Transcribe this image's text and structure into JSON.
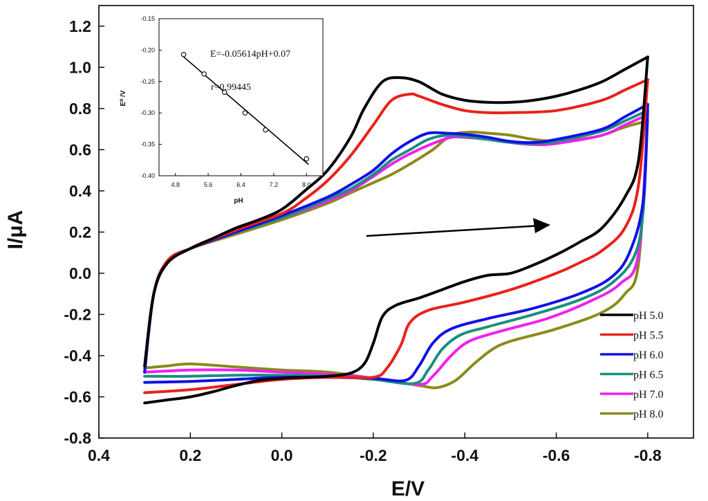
{
  "chart_data": [
    {
      "type": "line",
      "title": "",
      "xlabel": "E/V",
      "ylabel": "I/μA",
      "xlim": [
        0.4,
        -0.9
      ],
      "ylim": [
        -0.8,
        1.3
      ],
      "x_ticks": [
        "0.4",
        "0.2",
        "0.0",
        "-0.2",
        "-0.4",
        "-0.6",
        "-0.8"
      ],
      "y_ticks": [
        "-0.8",
        "-0.6",
        "-0.4",
        "-0.2",
        "0.0",
        "0.2",
        "0.4",
        "0.6",
        "0.8",
        "1.0",
        "1.2"
      ],
      "legend_position": "bottom-right",
      "grid": false,
      "annotation": "arrow pointing in positive potential-scan direction",
      "series": [
        {
          "name": "pH 5.0",
          "color": "#000000",
          "anodic": [
            [
              0.3,
              -0.63
            ],
            [
              0.25,
              -0.615
            ],
            [
              0.2,
              -0.6
            ],
            [
              0.15,
              -0.575
            ],
            [
              0.1,
              -0.545
            ],
            [
              0.05,
              -0.52
            ],
            [
              0.0,
              -0.51
            ],
            [
              -0.05,
              -0.505
            ],
            [
              -0.1,
              -0.5
            ],
            [
              -0.15,
              -0.485
            ],
            [
              -0.18,
              -0.44
            ],
            [
              -0.2,
              -0.34
            ],
            [
              -0.22,
              -0.21
            ],
            [
              -0.25,
              -0.155
            ],
            [
              -0.3,
              -0.12
            ],
            [
              -0.35,
              -0.08
            ],
            [
              -0.4,
              -0.04
            ],
            [
              -0.45,
              -0.01
            ],
            [
              -0.5,
              0.0
            ],
            [
              -0.55,
              0.04
            ],
            [
              -0.6,
              0.09
            ],
            [
              -0.65,
              0.15
            ],
            [
              -0.7,
              0.22
            ],
            [
              -0.75,
              0.37
            ],
            [
              -0.78,
              0.55
            ],
            [
              -0.8,
              1.05
            ]
          ],
          "cathodic": [
            [
              -0.8,
              1.05
            ],
            [
              -0.75,
              0.99
            ],
            [
              -0.7,
              0.93
            ],
            [
              -0.65,
              0.89
            ],
            [
              -0.6,
              0.86
            ],
            [
              -0.55,
              0.84
            ],
            [
              -0.5,
              0.83
            ],
            [
              -0.45,
              0.83
            ],
            [
              -0.4,
              0.84
            ],
            [
              -0.35,
              0.87
            ],
            [
              -0.3,
              0.93
            ],
            [
              -0.26,
              0.95
            ],
            [
              -0.22,
              0.93
            ],
            [
              -0.18,
              0.8
            ],
            [
              -0.15,
              0.66
            ],
            [
              -0.1,
              0.5
            ],
            [
              -0.05,
              0.4
            ],
            [
              0.0,
              0.31
            ],
            [
              0.05,
              0.26
            ],
            [
              0.1,
              0.22
            ],
            [
              0.15,
              0.17
            ],
            [
              0.2,
              0.12
            ],
            [
              0.25,
              0.05
            ],
            [
              0.28,
              -0.1
            ],
            [
              0.3,
              -0.45
            ]
          ]
        },
        {
          "name": "pH 5.5",
          "color": "#e8221a",
          "anodic": [
            [
              0.3,
              -0.58
            ],
            [
              0.2,
              -0.565
            ],
            [
              0.1,
              -0.54
            ],
            [
              0.0,
              -0.515
            ],
            [
              -0.1,
              -0.505
            ],
            [
              -0.2,
              -0.505
            ],
            [
              -0.23,
              -0.46
            ],
            [
              -0.26,
              -0.35
            ],
            [
              -0.28,
              -0.24
            ],
            [
              -0.32,
              -0.18
            ],
            [
              -0.4,
              -0.14
            ],
            [
              -0.5,
              -0.08
            ],
            [
              -0.6,
              0.0
            ],
            [
              -0.65,
              0.05
            ],
            [
              -0.7,
              0.11
            ],
            [
              -0.75,
              0.22
            ],
            [
              -0.78,
              0.43
            ],
            [
              -0.8,
              0.94
            ]
          ],
          "cathodic": [
            [
              -0.8,
              0.94
            ],
            [
              -0.75,
              0.89
            ],
            [
              -0.7,
              0.84
            ],
            [
              -0.6,
              0.79
            ],
            [
              -0.5,
              0.78
            ],
            [
              -0.45,
              0.78
            ],
            [
              -0.4,
              0.79
            ],
            [
              -0.35,
              0.82
            ],
            [
              -0.3,
              0.86
            ],
            [
              -0.28,
              0.87
            ],
            [
              -0.24,
              0.84
            ],
            [
              -0.2,
              0.72
            ],
            [
              -0.15,
              0.57
            ],
            [
              -0.1,
              0.45
            ],
            [
              -0.05,
              0.36
            ],
            [
              0.0,
              0.29
            ],
            [
              0.1,
              0.21
            ],
            [
              0.2,
              0.12
            ],
            [
              0.25,
              0.06
            ],
            [
              0.28,
              -0.1
            ],
            [
              0.3,
              -0.45
            ]
          ]
        },
        {
          "name": "pH 6.0",
          "color": "#1010e8",
          "anodic": [
            [
              0.3,
              -0.53
            ],
            [
              0.2,
              -0.525
            ],
            [
              0.1,
              -0.515
            ],
            [
              0.0,
              -0.505
            ],
            [
              -0.1,
              -0.505
            ],
            [
              -0.2,
              -0.51
            ],
            [
              -0.27,
              -0.52
            ],
            [
              -0.3,
              -0.45
            ],
            [
              -0.33,
              -0.34
            ],
            [
              -0.37,
              -0.27
            ],
            [
              -0.45,
              -0.22
            ],
            [
              -0.55,
              -0.17
            ],
            [
              -0.65,
              -0.1
            ],
            [
              -0.72,
              -0.02
            ],
            [
              -0.76,
              0.1
            ],
            [
              -0.79,
              0.35
            ],
            [
              -0.8,
              0.82
            ]
          ],
          "cathodic": [
            [
              -0.8,
              0.82
            ],
            [
              -0.75,
              0.76
            ],
            [
              -0.7,
              0.7
            ],
            [
              -0.6,
              0.65
            ],
            [
              -0.55,
              0.635
            ],
            [
              -0.5,
              0.64
            ],
            [
              -0.45,
              0.66
            ],
            [
              -0.4,
              0.675
            ],
            [
              -0.36,
              0.68
            ],
            [
              -0.32,
              0.68
            ],
            [
              -0.28,
              0.64
            ],
            [
              -0.24,
              0.58
            ],
            [
              -0.2,
              0.5
            ],
            [
              -0.15,
              0.43
            ],
            [
              -0.1,
              0.37
            ],
            [
              0.0,
              0.28
            ],
            [
              0.1,
              0.2
            ],
            [
              0.2,
              0.12
            ],
            [
              0.25,
              0.06
            ],
            [
              0.28,
              -0.1
            ],
            [
              0.3,
              -0.48
            ]
          ]
        },
        {
          "name": "pH 6.5",
          "color": "#1a8f7f",
          "anodic": [
            [
              0.3,
              -0.5
            ],
            [
              0.2,
              -0.5
            ],
            [
              0.1,
              -0.495
            ],
            [
              0.0,
              -0.495
            ],
            [
              -0.1,
              -0.5
            ],
            [
              -0.2,
              -0.515
            ],
            [
              -0.29,
              -0.535
            ],
            [
              -0.32,
              -0.47
            ],
            [
              -0.35,
              -0.37
            ],
            [
              -0.39,
              -0.3
            ],
            [
              -0.45,
              -0.26
            ],
            [
              -0.55,
              -0.2
            ],
            [
              -0.65,
              -0.13
            ],
            [
              -0.72,
              -0.05
            ],
            [
              -0.77,
              0.08
            ],
            [
              -0.79,
              0.3
            ],
            [
              -0.8,
              0.79
            ]
          ],
          "cathodic": [
            [
              -0.8,
              0.79
            ],
            [
              -0.75,
              0.74
            ],
            [
              -0.7,
              0.69
            ],
            [
              -0.6,
              0.64
            ],
            [
              -0.55,
              0.63
            ],
            [
              -0.5,
              0.635
            ],
            [
              -0.45,
              0.65
            ],
            [
              -0.4,
              0.665
            ],
            [
              -0.36,
              0.67
            ],
            [
              -0.32,
              0.65
            ],
            [
              -0.28,
              0.6
            ],
            [
              -0.24,
              0.55
            ],
            [
              -0.2,
              0.48
            ],
            [
              -0.15,
              0.41
            ],
            [
              -0.1,
              0.36
            ],
            [
              0.0,
              0.27
            ],
            [
              0.1,
              0.2
            ],
            [
              0.2,
              0.12
            ],
            [
              0.25,
              0.06
            ],
            [
              0.28,
              -0.1
            ],
            [
              0.3,
              -0.48
            ]
          ]
        },
        {
          "name": "pH 7.0",
          "color": "#f020f0",
          "anodic": [
            [
              0.3,
              -0.48
            ],
            [
              0.2,
              -0.47
            ],
            [
              0.1,
              -0.47
            ],
            [
              0.0,
              -0.48
            ],
            [
              -0.1,
              -0.49
            ],
            [
              -0.2,
              -0.51
            ],
            [
              -0.3,
              -0.54
            ],
            [
              -0.33,
              -0.5
            ],
            [
              -0.37,
              -0.4
            ],
            [
              -0.41,
              -0.33
            ],
            [
              -0.48,
              -0.28
            ],
            [
              -0.58,
              -0.22
            ],
            [
              -0.67,
              -0.14
            ],
            [
              -0.74,
              -0.05
            ],
            [
              -0.78,
              0.1
            ],
            [
              -0.8,
              0.77
            ]
          ],
          "cathodic": [
            [
              -0.8,
              0.77
            ],
            [
              -0.75,
              0.72
            ],
            [
              -0.7,
              0.67
            ],
            [
              -0.6,
              0.63
            ],
            [
              -0.55,
              0.625
            ],
            [
              -0.5,
              0.635
            ],
            [
              -0.45,
              0.65
            ],
            [
              -0.4,
              0.66
            ],
            [
              -0.37,
              0.66
            ],
            [
              -0.33,
              0.63
            ],
            [
              -0.28,
              0.58
            ],
            [
              -0.24,
              0.53
            ],
            [
              -0.2,
              0.47
            ],
            [
              -0.15,
              0.4
            ],
            [
              -0.1,
              0.35
            ],
            [
              0.0,
              0.27
            ],
            [
              0.1,
              0.2
            ],
            [
              0.2,
              0.12
            ],
            [
              0.25,
              0.06
            ],
            [
              0.28,
              -0.1
            ],
            [
              0.3,
              -0.48
            ]
          ]
        },
        {
          "name": "pH 8.0",
          "color": "#8a8a1a",
          "anodic": [
            [
              0.3,
              -0.46
            ],
            [
              0.25,
              -0.45
            ],
            [
              0.2,
              -0.44
            ],
            [
              0.1,
              -0.455
            ],
            [
              0.0,
              -0.47
            ],
            [
              -0.1,
              -0.48
            ],
            [
              -0.2,
              -0.51
            ],
            [
              -0.3,
              -0.545
            ],
            [
              -0.34,
              -0.555
            ],
            [
              -0.38,
              -0.52
            ],
            [
              -0.42,
              -0.44
            ],
            [
              -0.46,
              -0.37
            ],
            [
              -0.5,
              -0.33
            ],
            [
              -0.6,
              -0.27
            ],
            [
              -0.7,
              -0.19
            ],
            [
              -0.75,
              -0.1
            ],
            [
              -0.78,
              0.05
            ],
            [
              -0.8,
              0.74
            ]
          ],
          "cathodic": [
            [
              -0.8,
              0.74
            ],
            [
              -0.75,
              0.71
            ],
            [
              -0.7,
              0.67
            ],
            [
              -0.65,
              0.65
            ],
            [
              -0.6,
              0.64
            ],
            [
              -0.55,
              0.65
            ],
            [
              -0.5,
              0.67
            ],
            [
              -0.45,
              0.68
            ],
            [
              -0.41,
              0.685
            ],
            [
              -0.37,
              0.67
            ],
            [
              -0.33,
              0.6
            ],
            [
              -0.28,
              0.53
            ],
            [
              -0.24,
              0.48
            ],
            [
              -0.2,
              0.44
            ],
            [
              -0.15,
              0.39
            ],
            [
              -0.1,
              0.34
            ],
            [
              0.0,
              0.26
            ],
            [
              0.1,
              0.19
            ],
            [
              0.2,
              0.12
            ],
            [
              0.25,
              0.06
            ],
            [
              0.28,
              -0.1
            ],
            [
              0.3,
              -0.48
            ]
          ]
        }
      ]
    },
    {
      "type": "scatter",
      "title": "",
      "xlabel": "pH",
      "ylabel": "E⁰ /V",
      "xlim": [
        4.4,
        8.4
      ],
      "ylim": [
        -0.4,
        -0.15
      ],
      "x_ticks": [
        "4.8",
        "5.6",
        "6.4",
        "7.2",
        "8.0"
      ],
      "y_ticks": [
        "-0.15",
        "-0.20",
        "-0.25",
        "-0.30",
        "-0.35",
        "-0.40"
      ],
      "points": [
        [
          5.0,
          -0.207
        ],
        [
          5.5,
          -0.238
        ],
        [
          6.0,
          -0.267
        ],
        [
          6.5,
          -0.3
        ],
        [
          7.0,
          -0.327
        ],
        [
          8.0,
          -0.373
        ]
      ],
      "fit_line": {
        "slope": -0.05614,
        "intercept": 0.07,
        "x_range": [
          4.95,
          8.05
        ]
      },
      "equation_label": "E=-0.05614pH+0.07",
      "r_label": "r=0.99445"
    }
  ]
}
